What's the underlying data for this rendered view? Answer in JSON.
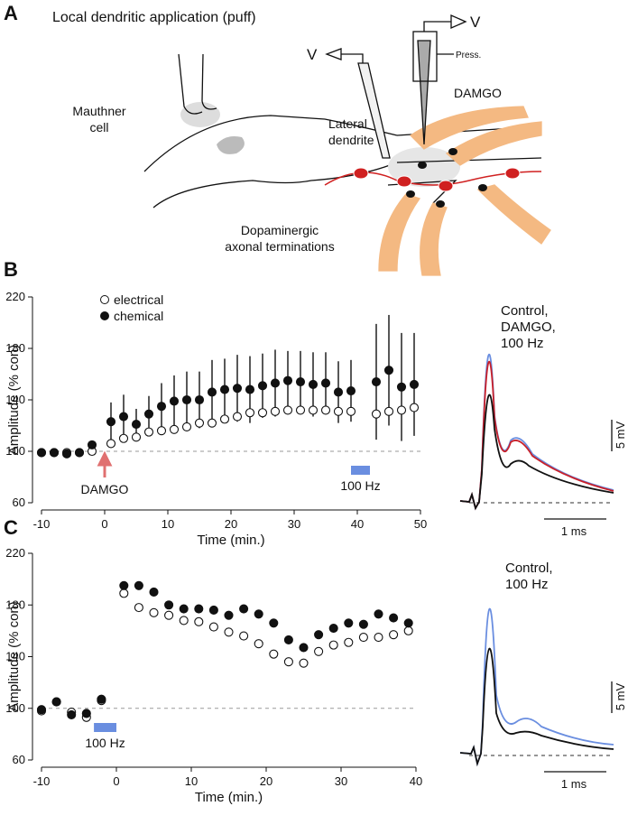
{
  "panel_labels": [
    "A",
    "B",
    "C"
  ],
  "diagram": {
    "title": "Local dendritic application (puff)",
    "mauthner": [
      "Mauthner",
      "cell"
    ],
    "dendrite": [
      "Lateral",
      "dendrite"
    ],
    "terminals": [
      "Dopaminergic",
      "axonal terminations"
    ],
    "drug": "DAMGO",
    "v_left": "V",
    "v_right": "V",
    "pressure": "Press."
  },
  "chart_data": [
    {
      "type": "scatter",
      "xlabel": "Time (min.)",
      "ylabel": "Amplitude (% con)",
      "xlim": [
        -10,
        50
      ],
      "ylim": [
        60,
        220
      ],
      "xticks": [
        -10,
        0,
        10,
        20,
        30,
        40,
        50
      ],
      "yticks": [
        60,
        100,
        140,
        180,
        220
      ],
      "reference_line": 100,
      "series": [
        {
          "name": "electrical",
          "marker": "open",
          "x": [
            -10,
            -8,
            -6,
            -4,
            -2,
            1,
            3,
            5,
            7,
            9,
            11,
            13,
            15,
            17,
            19,
            21,
            23,
            25,
            27,
            29,
            31,
            33,
            35,
            37,
            39,
            43,
            45,
            47,
            49
          ],
          "values": [
            99,
            99,
            99,
            99,
            100,
            106,
            110,
            111,
            115,
            116,
            117,
            119,
            122,
            122,
            125,
            127,
            130,
            130,
            131,
            132,
            132,
            132,
            132,
            131,
            131,
            129,
            131,
            132,
            134
          ]
        },
        {
          "name": "chemical",
          "marker": "filled",
          "x": [
            -10,
            -8,
            -6,
            -4,
            -2,
            1,
            3,
            5,
            7,
            9,
            11,
            13,
            15,
            17,
            19,
            21,
            23,
            25,
            27,
            29,
            31,
            33,
            35,
            37,
            39,
            43,
            45,
            47,
            49
          ],
          "values": [
            99,
            99,
            98,
            99,
            105,
            123,
            127,
            121,
            129,
            135,
            139,
            140,
            140,
            146,
            148,
            149,
            148,
            151,
            153,
            155,
            154,
            152,
            153,
            146,
            147,
            154,
            163,
            150,
            152
          ],
          "errors": [
            2,
            2,
            2,
            2,
            3,
            15,
            17,
            12,
            14,
            18,
            20,
            22,
            22,
            25,
            24,
            26,
            26,
            25,
            26,
            23,
            24,
            25,
            24,
            24,
            24,
            45,
            43,
            42,
            40
          ]
        }
      ],
      "arrow": {
        "text": "DAMGO",
        "x": 0,
        "color": "#e07070"
      },
      "stim": {
        "text": "100 Hz",
        "x": [
          39,
          42
        ],
        "color": "#6a8ee0"
      }
    },
    {
      "type": "scatter",
      "xlabel": "Time (min.)",
      "ylabel": "Amplitude (% con)",
      "xlim": [
        -10,
        40
      ],
      "ylim": [
        60,
        220
      ],
      "xticks": [
        -10,
        0,
        10,
        20,
        30,
        40
      ],
      "yticks": [
        60,
        100,
        140,
        180,
        220
      ],
      "reference_line": 100,
      "series": [
        {
          "marker": "open",
          "x": [
            -10,
            -8,
            -6,
            -4,
            -2,
            1,
            3,
            5,
            7,
            9,
            11,
            13,
            15,
            17,
            19,
            21,
            23,
            25,
            27,
            29,
            31,
            33,
            35,
            37,
            39
          ],
          "values": [
            98,
            105,
            97,
            93,
            106,
            189,
            178,
            174,
            172,
            168,
            167,
            163,
            159,
            156,
            150,
            142,
            136,
            135,
            144,
            149,
            151,
            155,
            155,
            157,
            160
          ]
        },
        {
          "marker": "filled",
          "x": [
            -10,
            -8,
            -6,
            -4,
            -2,
            1,
            3,
            5,
            7,
            9,
            11,
            13,
            15,
            17,
            19,
            21,
            23,
            25,
            27,
            29,
            31,
            33,
            35,
            37,
            39
          ],
          "values": [
            99,
            105,
            95,
            96,
            107,
            195,
            195,
            190,
            180,
            177,
            177,
            176,
            172,
            177,
            173,
            166,
            153,
            147,
            157,
            162,
            166,
            165,
            173,
            170,
            166
          ]
        }
      ],
      "stim": {
        "text": "100 Hz",
        "x": [
          -3,
          0
        ],
        "color": "#6a8ee0"
      }
    }
  ],
  "traces": [
    {
      "legend": [
        {
          "text": "Control,",
          "color": "#000000"
        },
        {
          "text": "DAMGO,",
          "color": "#c8202a"
        },
        {
          "text": "100 Hz",
          "color": "#6a8ee0"
        }
      ],
      "scale_y": "5 mV",
      "scale_x": "1 ms"
    },
    {
      "legend": [
        {
          "text": "Control,",
          "color": "#000000"
        },
        {
          "text": "100 Hz",
          "color": "#6a8ee0"
        }
      ],
      "scale_y": "5 mV",
      "scale_x": "1 ms"
    }
  ]
}
